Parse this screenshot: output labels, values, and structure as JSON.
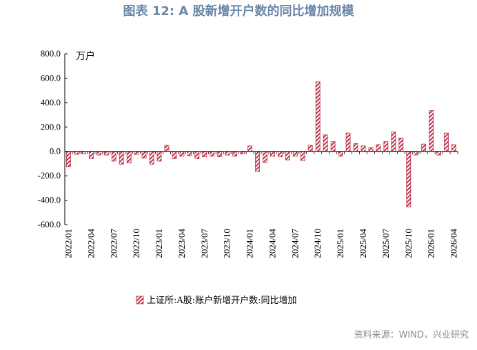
{
  "title": "图表  12: A 股新增开户数的同比增加规模",
  "source": "资料来源：WIND，兴业研究",
  "chart_data": {
    "type": "bar",
    "unit_label": "万户",
    "ylim": [
      -600,
      800
    ],
    "yticks": [
      "800.0",
      "600.0",
      "400.0",
      "200.0",
      "0.0",
      "-200.0",
      "-400.0",
      "-600.0"
    ],
    "ytick_values": [
      800,
      600,
      400,
      200,
      0,
      -200,
      -400,
      -600
    ],
    "xtick_labels": [
      "2022/01",
      "2022/04",
      "2022/07",
      "2022/10",
      "2023/01",
      "2023/04",
      "2023/07",
      "2023/10",
      "2024/01",
      "2024/04",
      "2024/07",
      "2024/10",
      "2025/01",
      "2025/04",
      "2025/07",
      "2025/10",
      "2026/01",
      "2026/04"
    ],
    "categories": [
      "2022/01",
      "2022/02",
      "2022/03",
      "2022/04",
      "2022/05",
      "2022/06",
      "2022/07",
      "2022/08",
      "2022/09",
      "2022/10",
      "2022/11",
      "2022/12",
      "2023/01",
      "2023/02",
      "2023/03",
      "2023/04",
      "2023/05",
      "2023/06",
      "2023/07",
      "2023/08",
      "2023/09",
      "2023/10",
      "2023/11",
      "2023/12",
      "2024/01",
      "2024/02",
      "2024/03",
      "2024/04",
      "2024/05",
      "2024/06",
      "2024/07",
      "2024/08",
      "2024/09",
      "2024/10",
      "2024/11",
      "2024/12",
      "2025/01",
      "2025/02",
      "2025/03",
      "2025/04",
      "2025/05",
      "2025/06",
      "2025/07",
      "2025/08",
      "2025/09",
      "2025/10",
      "2025/11",
      "2025/12",
      "2026/01",
      "2026/02",
      "2026/03",
      "2026/04"
    ],
    "series": [
      {
        "name": "上证所:A股:账户新增开户数:同比增加",
        "color": "#c0334d",
        "values": [
          -125,
          -25,
          -20,
          -60,
          -30,
          -30,
          -80,
          -105,
          -95,
          -25,
          -55,
          -105,
          -80,
          50,
          -60,
          -40,
          -35,
          -60,
          -45,
          -40,
          -45,
          -30,
          -40,
          -20,
          45,
          -165,
          -90,
          -40,
          -45,
          -70,
          -40,
          -75,
          50,
          570,
          135,
          80,
          -40,
          150,
          65,
          45,
          30,
          55,
          80,
          160,
          110,
          -455,
          -30,
          60,
          335,
          -30,
          150,
          55
        ]
      }
    ],
    "legend_position": "bottom",
    "grid": false
  }
}
